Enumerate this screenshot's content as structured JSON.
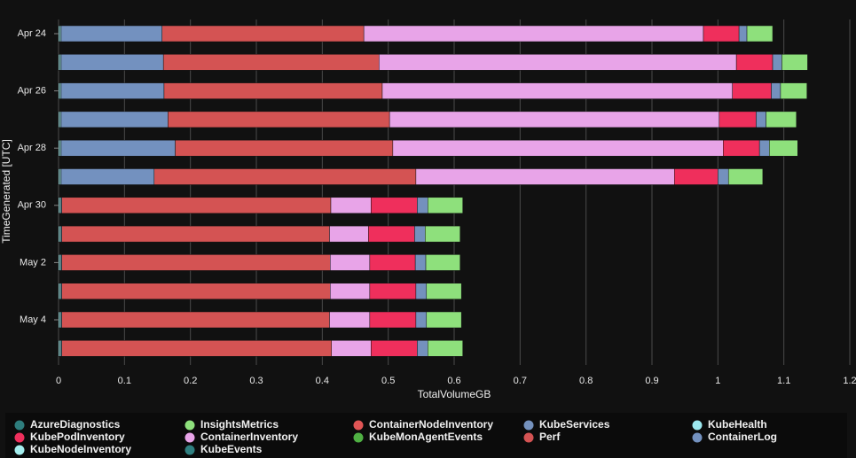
{
  "chart_data": {
    "type": "stacked_barh",
    "xlabel": "TotalVolumeGB",
    "ylabel": "TimeGenerated [UTC]",
    "categories": [
      "Apr 24",
      null,
      "Apr 26",
      null,
      "Apr 28",
      null,
      "Apr 30",
      null,
      "May 2",
      null,
      "May 4",
      null
    ],
    "xlim": [
      0,
      1.2
    ],
    "xticks": [
      0,
      0.1,
      0.2,
      0.3,
      0.4,
      0.5,
      0.6,
      0.7,
      0.8,
      0.9,
      1,
      1.1,
      1.2
    ],
    "grid": true,
    "series": [
      {
        "name": "AzureDiagnostics",
        "color": "#2e7d7d",
        "values": [
          0,
          0,
          0,
          0,
          0,
          0,
          0,
          0,
          0,
          0,
          0,
          0
        ]
      },
      {
        "name": "InsightsMetrics",
        "color": "#8ee07c",
        "values": [
          0.039,
          0.039,
          0.04,
          0.046,
          0.043,
          0.052,
          0.053,
          0.053,
          0.052,
          0.053,
          0.053,
          0.053
        ]
      },
      {
        "name": "ContainerNodeInventory",
        "color": "#e05555",
        "values": [
          0,
          0,
          0,
          0,
          0,
          0,
          0,
          0,
          0,
          0,
          0,
          0
        ]
      },
      {
        "name": "KubeServices",
        "color": "#7491bd",
        "values": [
          0.012,
          0.014,
          0.014,
          0.015,
          0.015,
          0.016,
          0.016,
          0.016,
          0.016,
          0.016,
          0.016,
          0.016
        ]
      },
      {
        "name": "KubeHealth",
        "color": "#9ce8ef",
        "values": [
          0.002,
          0.002,
          0.002,
          0.002,
          0.002,
          0.002,
          0.002,
          0.002,
          0.002,
          0.002,
          0.002,
          0.002
        ]
      },
      {
        "name": "KubePodInventory",
        "color": "#ef2f5c",
        "values": [
          0.054,
          0.055,
          0.059,
          0.056,
          0.055,
          0.066,
          0.07,
          0.07,
          0.069,
          0.07,
          0.07,
          0.07
        ]
      },
      {
        "name": "ContainerInventory",
        "color": "#e8a4e8",
        "values": [
          0.515,
          0.542,
          0.531,
          0.5,
          0.501,
          0.392,
          0.061,
          0.059,
          0.06,
          0.06,
          0.061,
          0.06
        ]
      },
      {
        "name": "KubeMonAgentEvents",
        "color": "#4fb043",
        "values": [
          0,
          0,
          0,
          0,
          0,
          0,
          0,
          0,
          0,
          0,
          0,
          0
        ]
      },
      {
        "name": "Perf",
        "color": "#d45353",
        "values": [
          0.306,
          0.327,
          0.331,
          0.336,
          0.33,
          0.397,
          0.408,
          0.406,
          0.407,
          0.407,
          0.406,
          0.409
        ]
      },
      {
        "name": "ContainerLog",
        "color": "#7391bf",
        "values": [
          0.153,
          0.155,
          0.156,
          0.162,
          0.173,
          0.141,
          0.001,
          0.001,
          0.001,
          0.001,
          0.001,
          0.001
        ]
      },
      {
        "name": "KubeNodeInventory",
        "color": "#a4eeee",
        "values": [
          0.002,
          0.002,
          0.002,
          0.002,
          0.002,
          0.002,
          0.002,
          0.002,
          0.002,
          0.002,
          0.002,
          0.002
        ]
      },
      {
        "name": "KubeEvents",
        "color": "#2f7f80",
        "values": [
          0,
          0,
          0,
          0,
          0,
          0,
          0,
          0,
          0,
          0,
          0,
          0
        ]
      }
    ]
  }
}
